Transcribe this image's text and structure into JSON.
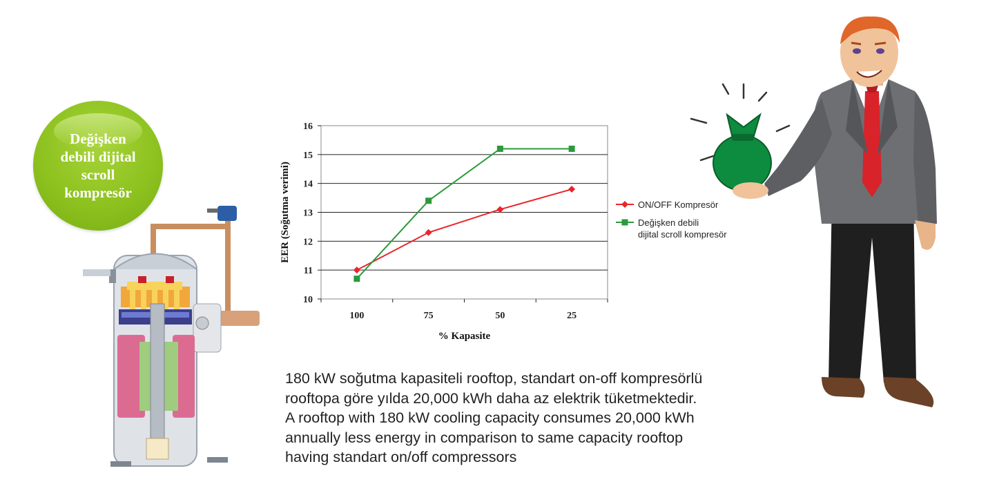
{
  "badge": {
    "text": "Değişken\ndebili dijital\nscroll\nkompresör",
    "color": "#8dc21f"
  },
  "chart_data": {
    "type": "line",
    "categories": [
      "100",
      "75",
      "50",
      "25"
    ],
    "xlabel": "% Kapasite",
    "ylabel": "EER (Soğutma verimi)",
    "ylim": [
      10,
      16
    ],
    "yticks": [
      10,
      11,
      12,
      13,
      14,
      15,
      16
    ],
    "grid": true,
    "legend_position": "right",
    "series": [
      {
        "name": "ON/OFF Kompresör",
        "color": "#e8262b",
        "marker": "diamond",
        "values": [
          11.0,
          12.3,
          13.1,
          13.8
        ]
      },
      {
        "name": "Değişken debili\ndijital scroll kompresör",
        "color": "#2a9a3c",
        "marker": "square",
        "values": [
          10.7,
          13.4,
          15.2,
          15.2
        ]
      }
    ]
  },
  "description": {
    "lines": [
      "180 kW soğutma kapasiteli rooftop, standart on-off kompresörlü",
      "rooftopa göre yılda 20,000 kWh daha az elektrik tüketmektedir.",
      "A rooftop with 180 kW cooling capacity consumes 20,000 kWh",
      "annually less energy in comparison to same capacity rooftop",
      "having standart on/off compressors"
    ]
  },
  "illustrations": {
    "compressor_icon": "scroll-compressor-cutaway",
    "person_icon": "businessman-holding-money-bag",
    "money_bag_color": "#0d8c3f"
  }
}
